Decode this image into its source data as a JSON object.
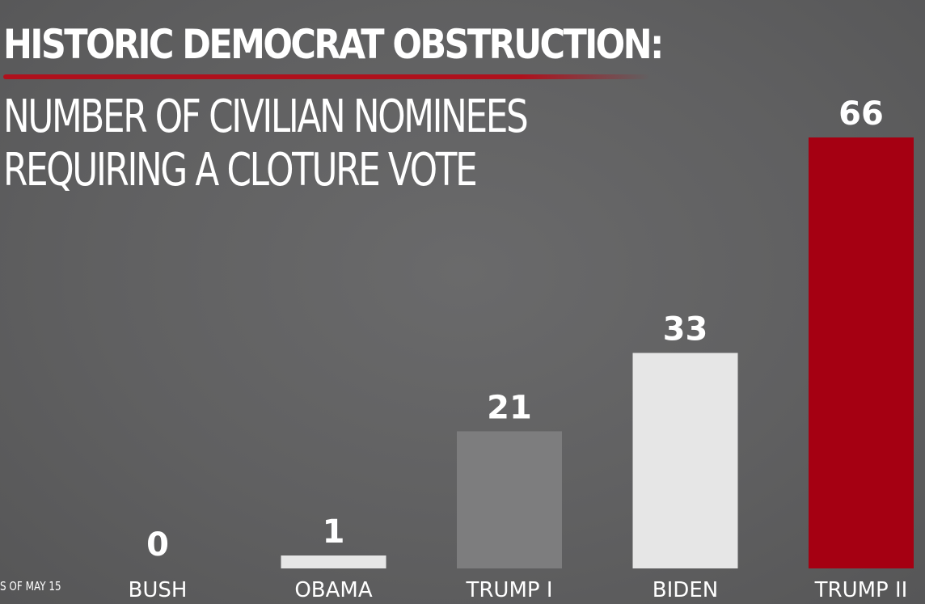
{
  "chart_data": {
    "type": "bar",
    "title": "HISTORIC DEMOCRAT OBSTRUCTION:",
    "subtitle_lines": [
      "NUMBER OF CIVILIAN NOMINEES",
      "REQUIRING A CLOTURE VOTE"
    ],
    "categories": [
      "BUSH",
      "OBAMA",
      "TRUMP I",
      "BIDEN",
      "TRUMP II"
    ],
    "values": [
      0,
      1,
      21,
      33,
      66
    ],
    "ylim": [
      0,
      66
    ],
    "grid": false,
    "bar_colors": [
      "#f0f0f0",
      "#e6e6e6",
      "#7d7d7e",
      "#e6e6e6",
      "#a50012"
    ],
    "note": "S OF MAY 15"
  },
  "colors": {
    "background": "#5f5f60",
    "accent": "#b0101c",
    "text": "#ffffff"
  }
}
